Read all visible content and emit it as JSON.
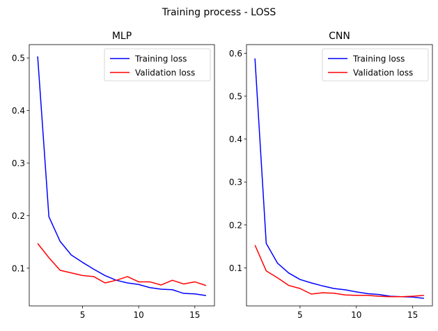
{
  "suptitle": "Training process - LOSS",
  "chart_data": [
    {
      "type": "line",
      "title": "MLP",
      "xlabel": "",
      "ylabel": "",
      "xlim": [
        0.25,
        16.75
      ],
      "ylim": [
        0.0282,
        0.5254
      ],
      "xticks": [
        5,
        10,
        15
      ],
      "yticks": [
        0.1,
        0.2,
        0.3,
        0.4,
        0.5
      ],
      "legend_position": "top-right",
      "x": [
        1,
        2,
        3,
        4,
        5,
        6,
        7,
        8,
        9,
        10,
        11,
        12,
        13,
        14,
        15,
        16
      ],
      "series": [
        {
          "name": "Training loss",
          "color": "#0000ff",
          "values": [
            0.503,
            0.198,
            0.151,
            0.125,
            0.111,
            0.098,
            0.086,
            0.077,
            0.072,
            0.069,
            0.063,
            0.06,
            0.059,
            0.052,
            0.051,
            0.048
          ]
        },
        {
          "name": "Validation loss",
          "color": "#ff0000",
          "values": [
            0.147,
            0.12,
            0.096,
            0.091,
            0.086,
            0.084,
            0.072,
            0.077,
            0.084,
            0.074,
            0.074,
            0.068,
            0.077,
            0.07,
            0.074,
            0.067
          ]
        }
      ]
    },
    {
      "type": "line",
      "title": "CNN",
      "xlabel": "",
      "ylabel": "",
      "xlim": [
        0.25,
        16.75
      ],
      "ylim": [
        0.0114,
        0.6201
      ],
      "xticks": [
        5,
        10,
        15
      ],
      "yticks": [
        0.1,
        0.2,
        0.3,
        0.4,
        0.5,
        0.6
      ],
      "legend_position": "top-right",
      "x": [
        1,
        2,
        3,
        4,
        5,
        6,
        7,
        8,
        9,
        10,
        11,
        12,
        13,
        14,
        15,
        16
      ],
      "series": [
        {
          "name": "Training loss",
          "color": "#0000ff",
          "values": [
            0.588,
            0.157,
            0.111,
            0.088,
            0.073,
            0.065,
            0.058,
            0.052,
            0.049,
            0.044,
            0.04,
            0.038,
            0.034,
            0.033,
            0.032,
            0.029
          ]
        },
        {
          "name": "Validation loss",
          "color": "#ff0000",
          "values": [
            0.153,
            0.093,
            0.077,
            0.059,
            0.052,
            0.039,
            0.042,
            0.041,
            0.037,
            0.036,
            0.036,
            0.034,
            0.033,
            0.033,
            0.034,
            0.036
          ]
        }
      ]
    }
  ]
}
